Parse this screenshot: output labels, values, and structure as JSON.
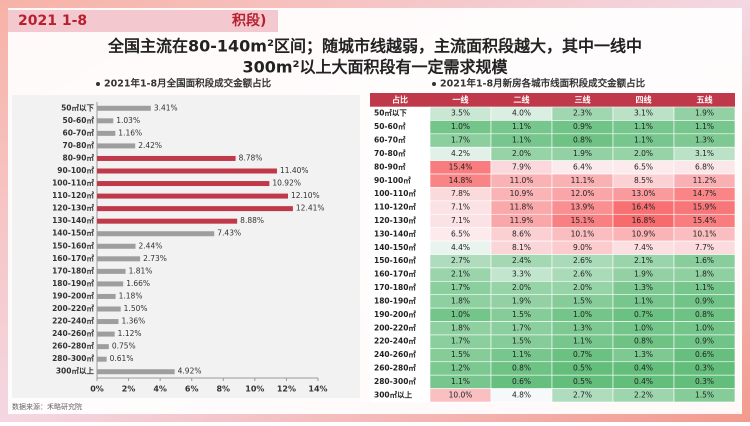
{
  "header": {
    "title_parts": [
      "2021 1-8",
      "积段)"
    ]
  },
  "headline": [
    "全国主流在80-140m²区间；随城市线越弱，主流面积段越大，其中一线中",
    "300m²以上大面积段有一定需求规模"
  ],
  "chart_data": {
    "type": "bar",
    "orientation": "horizontal",
    "title": "2021年1-8月全国面积段成交金额占比",
    "categories": [
      "50㎡以下",
      "50-60㎡",
      "60-70㎡",
      "70-80㎡",
      "80-90㎡",
      "90-100㎡",
      "100-110㎡",
      "110-120㎡",
      "120-130㎡",
      "130-140㎡",
      "140-150㎡",
      "150-160㎡",
      "160-170㎡",
      "170-180㎡",
      "180-190㎡",
      "190-200㎡",
      "200-220㎡",
      "220-240㎡",
      "240-260㎡",
      "260-280㎡",
      "280-300㎡",
      "300㎡以上"
    ],
    "values": [
      3.41,
      1.03,
      1.16,
      2.42,
      8.78,
      11.4,
      10.92,
      12.1,
      12.41,
      8.88,
      7.43,
      2.44,
      2.73,
      1.81,
      1.66,
      1.18,
      1.5,
      1.36,
      1.12,
      0.75,
      0.61,
      4.92
    ],
    "value_labels": [
      "3.41%",
      "1.03%",
      "1.16%",
      "2.42%",
      "8.78%",
      "11.40%",
      "10.92%",
      "12.10%",
      "12.41%",
      "8.88%",
      "7.43%",
      "2.44%",
      "2.73%",
      "1.81%",
      "1.66%",
      "1.18%",
      "1.50%",
      "1.36%",
      "1.12%",
      "0.75%",
      "0.61%",
      "4.92%"
    ],
    "colors": [
      "#9e9e9e",
      "#9e9e9e",
      "#9e9e9e",
      "#9e9e9e",
      "#c0394a",
      "#c0394a",
      "#c0394a",
      "#c0394a",
      "#c0394a",
      "#c0394a",
      "#9e9e9e",
      "#9e9e9e",
      "#9e9e9e",
      "#9e9e9e",
      "#9e9e9e",
      "#9e9e9e",
      "#9e9e9e",
      "#9e9e9e",
      "#9e9e9e",
      "#9e9e9e",
      "#9e9e9e",
      "#9e9e9e"
    ],
    "xlim": [
      0,
      14
    ],
    "xticks": [
      {
        "value": 0,
        "label": "0%"
      },
      {
        "value": 2,
        "label": "2%"
      },
      {
        "value": 4,
        "label": "4%"
      },
      {
        "value": 6,
        "label": "6%"
      },
      {
        "value": 8,
        "label": "8%"
      },
      {
        "value": 10,
        "label": "10%"
      },
      {
        "value": 12,
        "label": "12%"
      },
      {
        "value": 14,
        "label": "14%"
      }
    ]
  },
  "table": {
    "title": "2021年1-8月新房各城市线面积段成交金额占比",
    "columns": [
      "占比",
      "一线",
      "二线",
      "三线",
      "四线",
      "五线"
    ],
    "rows": [
      [
        "50㎡以下",
        "3.5%",
        "4.0%",
        "2.3%",
        "3.1%",
        "1.9%"
      ],
      [
        "50-60㎡",
        "1.0%",
        "1.1%",
        "0.9%",
        "1.1%",
        "1.1%"
      ],
      [
        "60-70㎡",
        "1.7%",
        "1.1%",
        "0.8%",
        "1.1%",
        "1.3%"
      ],
      [
        "70-80㎡",
        "4.2%",
        "2.0%",
        "1.9%",
        "2.0%",
        "3.1%"
      ],
      [
        "80-90㎡",
        "15.4%",
        "7.9%",
        "6.4%",
        "6.5%",
        "6.8%"
      ],
      [
        "90-100㎡",
        "14.8%",
        "11.0%",
        "11.1%",
        "8.5%",
        "11.2%"
      ],
      [
        "100-110㎡",
        "7.8%",
        "10.9%",
        "12.0%",
        "13.0%",
        "14.7%"
      ],
      [
        "110-120㎡",
        "7.1%",
        "11.8%",
        "13.9%",
        "16.4%",
        "15.9%"
      ],
      [
        "120-130㎡",
        "7.1%",
        "11.9%",
        "15.1%",
        "16.8%",
        "15.4%"
      ],
      [
        "130-140㎡",
        "6.5%",
        "8.6%",
        "10.1%",
        "10.9%",
        "10.1%"
      ],
      [
        "140-150㎡",
        "4.4%",
        "8.1%",
        "9.0%",
        "7.4%",
        "7.7%"
      ],
      [
        "150-160㎡",
        "2.7%",
        "2.4%",
        "2.6%",
        "2.1%",
        "1.6%"
      ],
      [
        "160-170㎡",
        "2.1%",
        "3.3%",
        "2.6%",
        "1.9%",
        "1.8%"
      ],
      [
        "170-180㎡",
        "1.7%",
        "2.0%",
        "2.0%",
        "1.3%",
        "1.1%"
      ],
      [
        "180-190㎡",
        "1.8%",
        "1.9%",
        "1.5%",
        "1.1%",
        "0.9%"
      ],
      [
        "190-200㎡",
        "1.0%",
        "1.5%",
        "1.0%",
        "0.7%",
        "0.8%"
      ],
      [
        "200-220㎡",
        "1.8%",
        "1.7%",
        "1.3%",
        "1.0%",
        "1.0%"
      ],
      [
        "220-240㎡",
        "1.7%",
        "1.5%",
        "1.1%",
        "0.8%",
        "0.9%"
      ],
      [
        "240-260㎡",
        "1.5%",
        "1.1%",
        "0.7%",
        "1.3%",
        "0.6%"
      ],
      [
        "260-280㎡",
        "1.2%",
        "0.8%",
        "0.5%",
        "0.4%",
        "0.3%"
      ],
      [
        "280-300㎡",
        "1.1%",
        "0.6%",
        "0.5%",
        "0.4%",
        "0.3%"
      ],
      [
        "300㎡以上",
        "10.0%",
        "4.8%",
        "2.7%",
        "2.2%",
        "1.5%"
      ]
    ]
  },
  "source": "数据来源：禾略研究院"
}
